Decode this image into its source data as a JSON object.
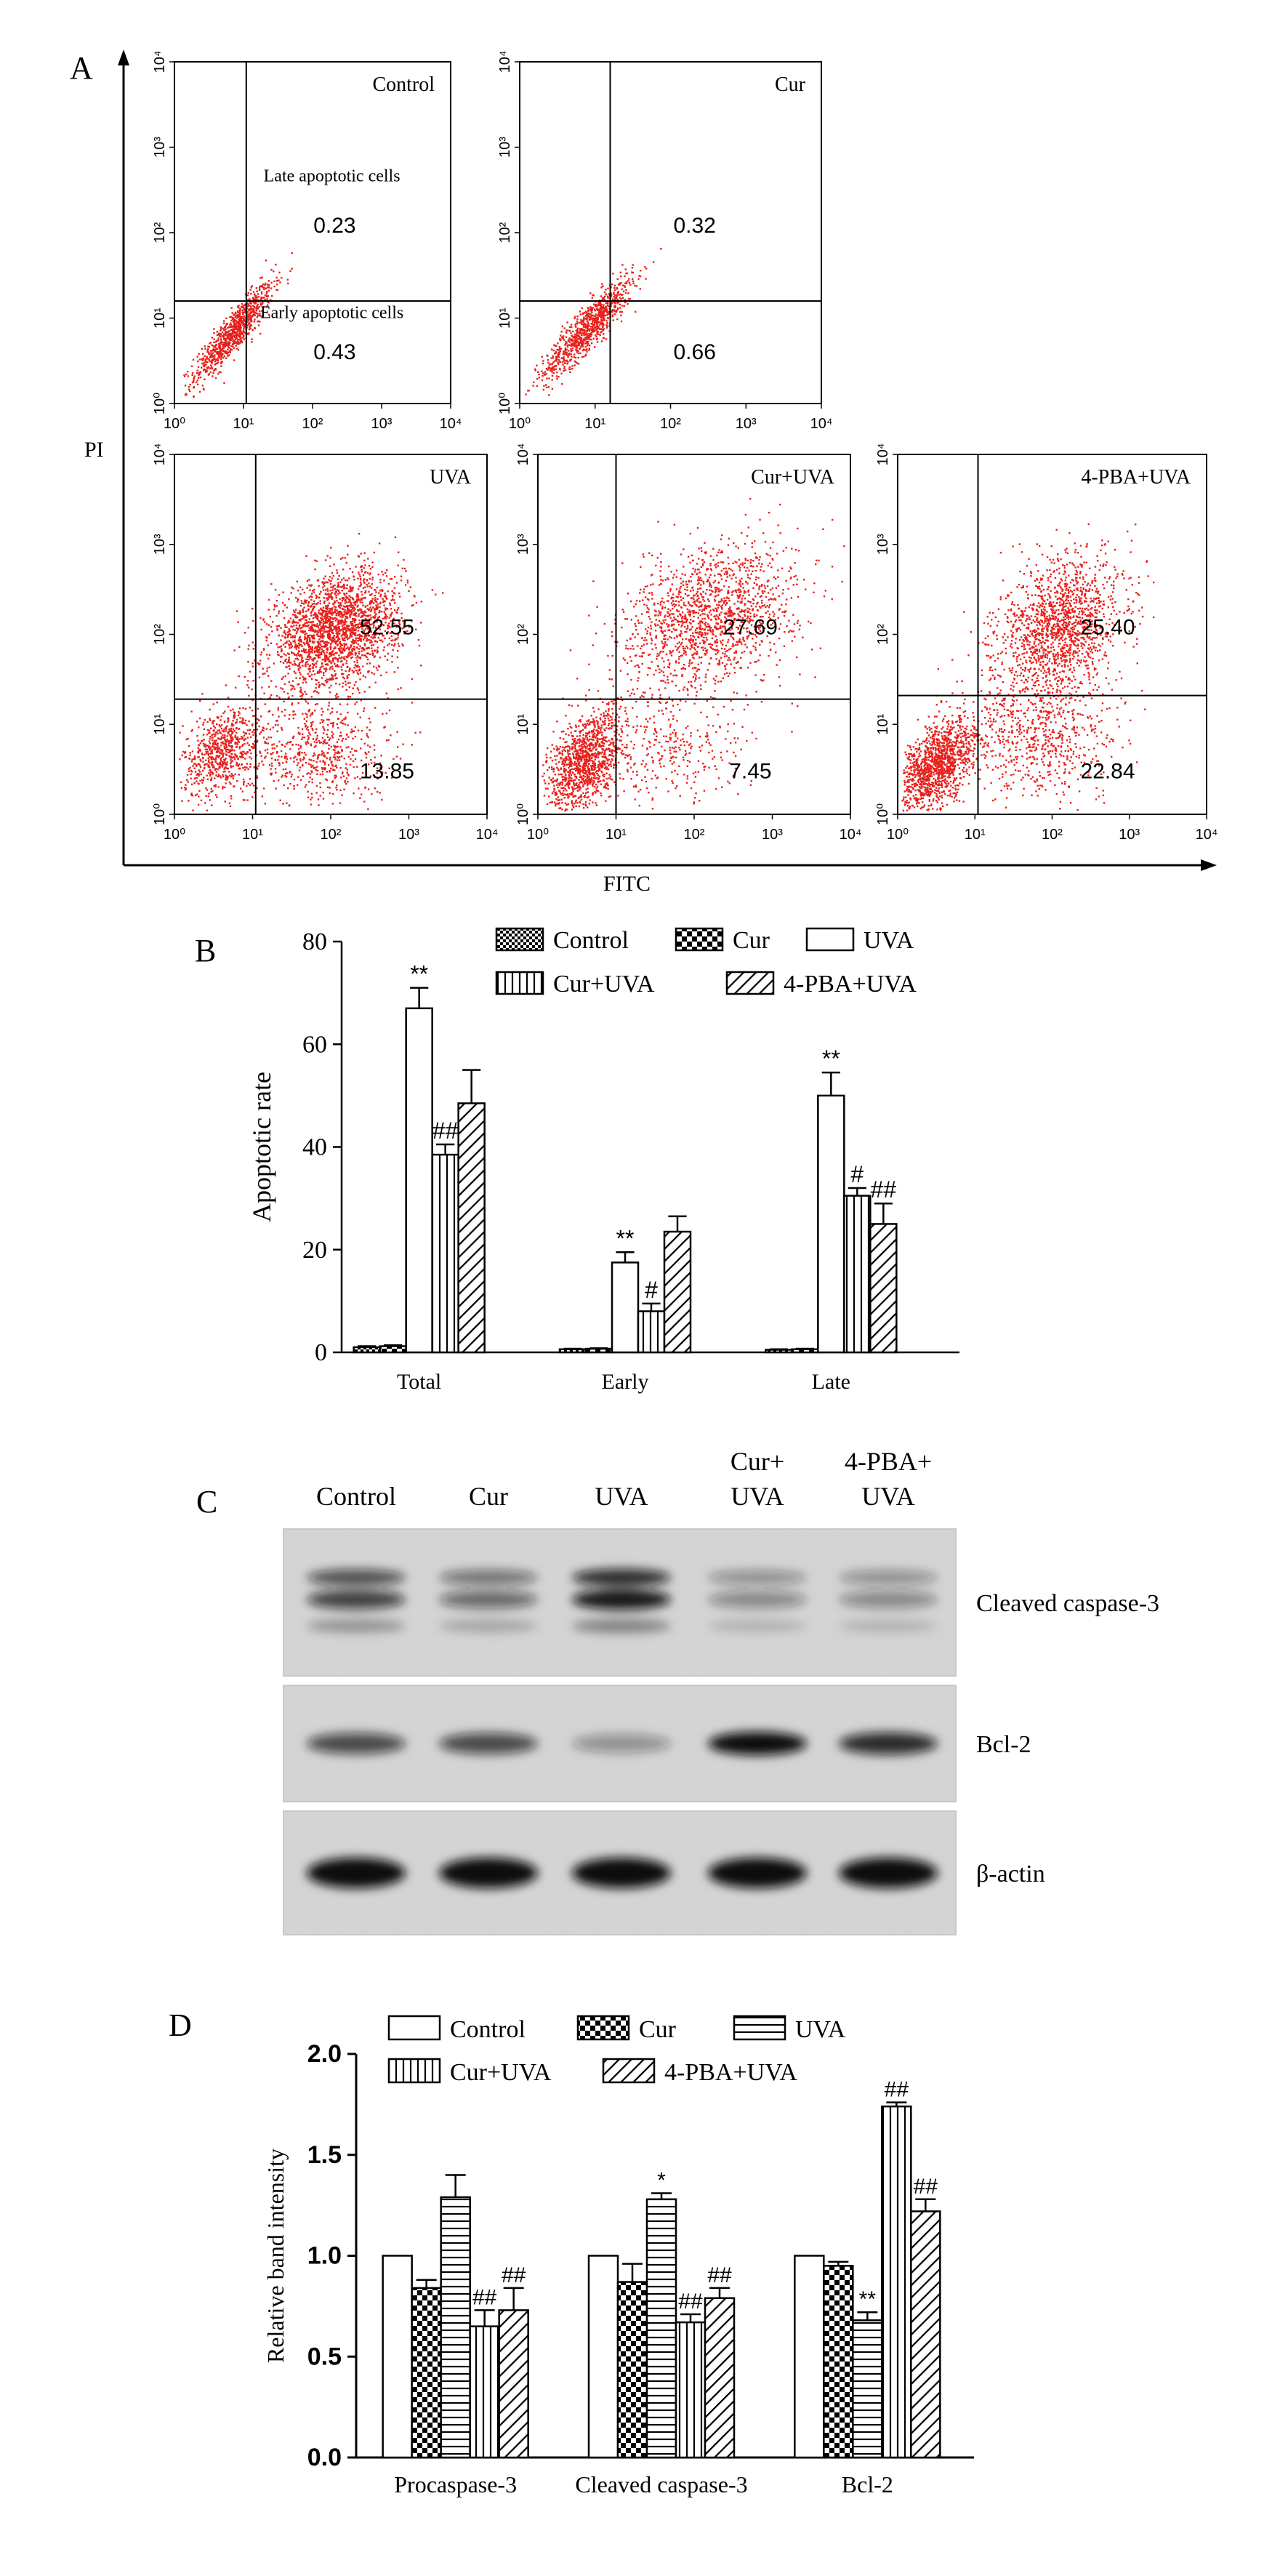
{
  "figure": {
    "panels": {
      "a": "A",
      "b": "B",
      "c": "C",
      "d": "D"
    }
  },
  "colors": {
    "dot": "#e8201c",
    "dot_dense": "#d81a14",
    "axis": "#000000",
    "blot_bg": "#d6d6d6",
    "blot_bg_frame": "#c9c9c9"
  },
  "flow": {
    "y_axis_label": "PI",
    "x_axis_label": "FITC",
    "tick_labels": [
      "10⁰",
      "10¹",
      "10²",
      "10³",
      "10⁴"
    ],
    "annotations": {
      "late": "Late apoptotic cells",
      "early": "Early apoptotic cells"
    },
    "plots": [
      {
        "id": "control",
        "title": "Control",
        "upper_right": "0.23",
        "lower_right": "0.43",
        "late_label": true,
        "early_label": true
      },
      {
        "id": "cur",
        "title": "Cur",
        "upper_right": "0.32",
        "lower_right": "0.66",
        "late_label": false,
        "early_label": false
      },
      {
        "id": "uva",
        "title": "UVA",
        "upper_right": "52.55",
        "lower_right": "13.85",
        "late_label": false,
        "early_label": false
      },
      {
        "id": "cur_uva",
        "title": "Cur+UVA",
        "upper_right": "27.69",
        "lower_right": "7.45",
        "late_label": false,
        "early_label": false
      },
      {
        "id": "pba_uva",
        "title": "4-PBA+UVA",
        "upper_right": "25.40",
        "lower_right": "22.84",
        "late_label": false,
        "early_label": false
      }
    ]
  },
  "chart_data": [
    {
      "type": "bar",
      "panel": "B",
      "ylabel": "Apoptotic rate",
      "xlabel": "",
      "ylim": [
        0,
        80
      ],
      "yticks": [
        "0",
        "20",
        "40",
        "60",
        "80"
      ],
      "categories": [
        "Total",
        "Early",
        "Late"
      ],
      "legend_placement": "top",
      "series": [
        {
          "name": "Control",
          "pattern": "fine-check",
          "values": [
            1.0,
            0.6,
            0.5
          ],
          "errors": [
            0.2,
            0.1,
            0.1
          ],
          "sig": [
            "",
            "",
            ""
          ]
        },
        {
          "name": "Cur",
          "pattern": "check",
          "values": [
            1.2,
            0.7,
            0.6
          ],
          "errors": [
            0.2,
            0.1,
            0.1
          ],
          "sig": [
            "",
            "",
            ""
          ]
        },
        {
          "name": "UVA",
          "pattern": "open",
          "values": [
            67,
            17.5,
            50
          ],
          "errors": [
            4,
            2,
            4.5
          ],
          "sig": [
            "**",
            "**",
            "**"
          ]
        },
        {
          "name": "Cur+UVA",
          "pattern": "vertical",
          "values": [
            38.5,
            8,
            30.5
          ],
          "errors": [
            2,
            1.5,
            1.5
          ],
          "sig": [
            "##",
            "#",
            "#"
          ]
        },
        {
          "name": "4-PBA+UVA",
          "pattern": "diagonal",
          "values": [
            48.5,
            23.5,
            25
          ],
          "errors": [
            6.5,
            3,
            4
          ],
          "sig": [
            "",
            "",
            "##"
          ]
        }
      ]
    },
    {
      "type": "bar",
      "panel": "D",
      "ylabel": "Relative band intensity",
      "xlabel": "",
      "ylim": [
        0,
        2.0
      ],
      "yticks": [
        "0.0",
        "0.5",
        "1.0",
        "1.5",
        "2.0"
      ],
      "categories": [
        "Procaspase-3",
        "Cleaved caspase-3",
        "Bcl-2"
      ],
      "legend_placement": "top",
      "series": [
        {
          "name": "Control",
          "pattern": "open",
          "values": [
            1.0,
            1.0,
            1.0
          ],
          "errors": [
            0,
            0,
            0
          ],
          "sig": [
            "",
            "",
            ""
          ]
        },
        {
          "name": "Cur",
          "pattern": "check",
          "values": [
            0.84,
            0.87,
            0.95
          ],
          "errors": [
            0.04,
            0.09,
            0.02
          ],
          "sig": [
            "",
            "",
            ""
          ]
        },
        {
          "name": "UVA",
          "pattern": "horizontal",
          "values": [
            1.29,
            1.28,
            0.68
          ],
          "errors": [
            0.11,
            0.03,
            0.04
          ],
          "sig": [
            "",
            "*",
            "**"
          ]
        },
        {
          "name": "Cur+UVA",
          "pattern": "vertical",
          "values": [
            0.65,
            0.67,
            1.74
          ],
          "errors": [
            0.08,
            0.04,
            0.02
          ],
          "sig": [
            "##",
            "##",
            "##"
          ]
        },
        {
          "name": "4-PBA+UVA",
          "pattern": "diagonal",
          "values": [
            0.73,
            0.79,
            1.22
          ],
          "errors": [
            0.11,
            0.05,
            0.06
          ],
          "sig": [
            "##",
            "##",
            "##"
          ]
        }
      ]
    }
  ],
  "blot": {
    "lanes": [
      "Control",
      "Cur",
      "UVA",
      "Cur+\nUVA",
      "4-PBA+\nUVA"
    ],
    "rows": [
      {
        "label": "Cleaved caspase-3",
        "intensity": [
          0.75,
          0.55,
          0.95,
          0.4,
          0.4
        ]
      },
      {
        "label": "Bcl-2",
        "intensity": [
          0.7,
          0.7,
          0.35,
          1.0,
          0.85
        ]
      },
      {
        "label": "β-actin",
        "intensity": [
          1.0,
          1.0,
          1.0,
          1.0,
          1.0
        ]
      }
    ]
  }
}
